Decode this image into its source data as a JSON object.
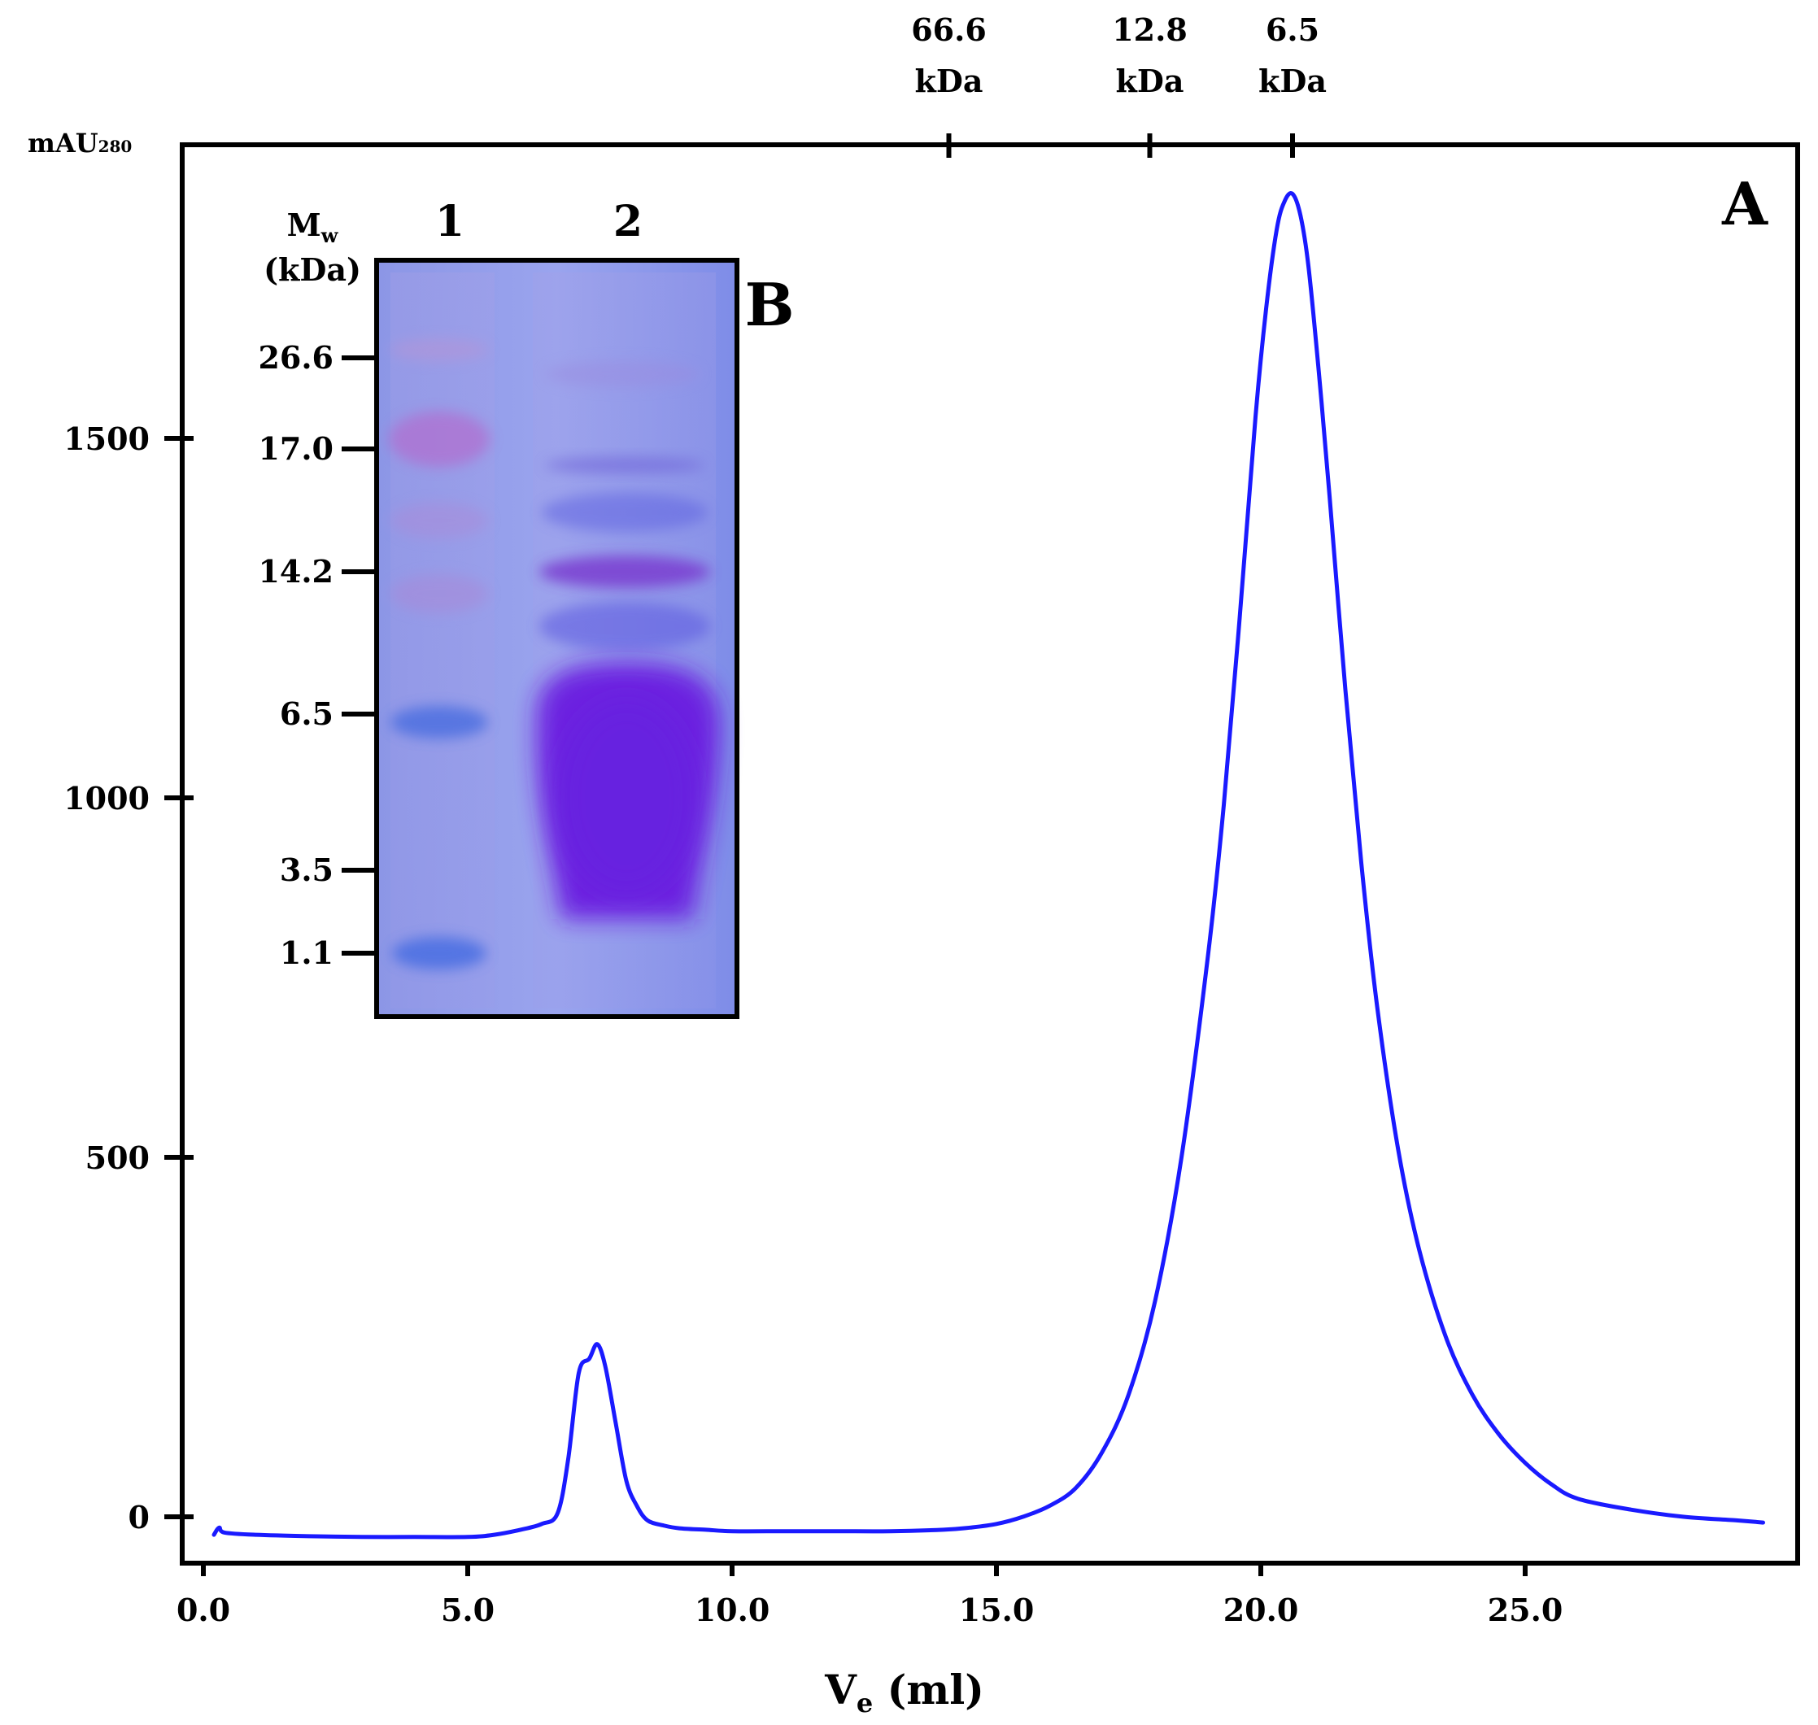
{
  "chart_data": {
    "type": "line",
    "panel_label": "A",
    "xlabel_main": "V",
    "xlabel_sub": "e",
    "xlabel_rest": " (ml)",
    "ylabel_main": "mAU",
    "ylabel_sub": "280",
    "xlim": [
      -0.3,
      29.9
    ],
    "ylim": [
      -60,
      1920
    ],
    "x_ticks": [
      0,
      5,
      10,
      15,
      20,
      25
    ],
    "x_tick_labels": [
      "0.0",
      "5.0",
      "10.0",
      "15.0",
      "20.0",
      "25.0"
    ],
    "y_ticks": [
      0,
      500,
      1000,
      1500
    ],
    "y_tick_labels": [
      "0",
      "500",
      "1000",
      "1500"
    ],
    "top_markers": [
      {
        "x": 14.1,
        "value": "66.6",
        "unit": "kDa"
      },
      {
        "x": 17.9,
        "value": "12.8",
        "unit": "kDa"
      },
      {
        "x": 20.6,
        "value": "6.5",
        "unit": "kDa"
      }
    ],
    "series": [
      {
        "name": "chromatogram",
        "color": "#1a1aff",
        "x": [
          0.2,
          0.3,
          0.4,
          1.0,
          2.0,
          3.0,
          4.0,
          5.0,
          5.5,
          6.0,
          6.4,
          6.7,
          6.9,
          7.1,
          7.3,
          7.45,
          7.6,
          7.8,
          8.0,
          8.2,
          8.4,
          8.7,
          9.0,
          9.5,
          10.0,
          11.0,
          12.0,
          13.0,
          14.0,
          14.5,
          15.0,
          15.5,
          16.0,
          16.5,
          17.0,
          17.5,
          18.0,
          18.5,
          19.0,
          19.3,
          19.6,
          19.9,
          20.1,
          20.3,
          20.45,
          20.6,
          20.75,
          20.9,
          21.1,
          21.3,
          21.6,
          21.9,
          22.2,
          22.6,
          23.0,
          23.5,
          24.0,
          24.5,
          25.0,
          25.5,
          26.0,
          27.0,
          28.0,
          29.0,
          29.5
        ],
        "y": [
          -25,
          -15,
          -22,
          -25,
          -27,
          -28,
          -28,
          -28,
          -25,
          -18,
          -10,
          5,
          80,
          200,
          220,
          240,
          210,
          130,
          50,
          15,
          -5,
          -12,
          -16,
          -18,
          -20,
          -20,
          -20,
          -20,
          -18,
          -15,
          -10,
          0,
          15,
          40,
          90,
          170,
          300,
          500,
          780,
          990,
          1250,
          1530,
          1680,
          1790,
          1830,
          1840,
          1810,
          1740,
          1590,
          1420,
          1150,
          910,
          710,
          510,
          370,
          250,
          170,
          115,
          75,
          45,
          25,
          10,
          0,
          -5,
          -8
        ]
      }
    ],
    "inset": {
      "label": "B",
      "mw_label_main": "M",
      "mw_label_sub": "w",
      "mw_unit": "(kDa)",
      "lanes": [
        "1",
        "2"
      ],
      "marker_ticks": [
        "26.6",
        "17.0",
        "14.2",
        "6.5",
        "3.5",
        "1.1"
      ]
    }
  }
}
